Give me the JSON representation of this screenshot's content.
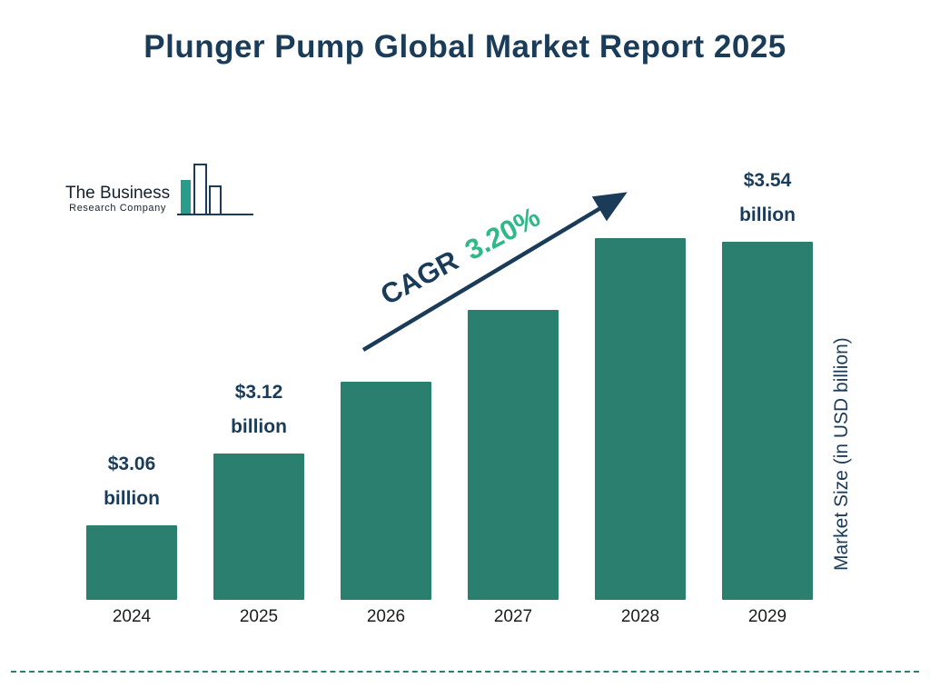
{
  "title": "Plunger Pump Global Market Report 2025",
  "logo": {
    "name_line1": "The Business",
    "name_line2": "Research Company"
  },
  "cagr": {
    "label": "CAGR",
    "value": "3.20%"
  },
  "ylabel": "Market Size (in USD billion)",
  "colors": {
    "accent_navy": "#1b3c59",
    "bar_teal": "#2a7f6f",
    "cagr_green": "#2fb988"
  },
  "chart_data": {
    "type": "bar",
    "title": "Plunger Pump Global Market Report 2025",
    "categories": [
      "2024",
      "2025",
      "2026",
      "2027",
      "2028",
      "2029"
    ],
    "values": [
      3.06,
      3.12,
      3.22,
      3.32,
      3.43,
      3.54
    ],
    "bar_labels": [
      {
        "index": 0,
        "amount": "$3.06",
        "unit": "billion"
      },
      {
        "index": 1,
        "amount": "$3.12",
        "unit": "billion"
      },
      {
        "index": 5,
        "amount": "$3.54",
        "unit": "billion"
      }
    ],
    "xlabel": "",
    "ylabel": "Market Size (in USD billion)",
    "annotation": "CAGR 3.20%",
    "legend": "none",
    "grid": "off",
    "baseline": "non-zero stylized baseline",
    "bar_color": "#2a7f6f"
  }
}
